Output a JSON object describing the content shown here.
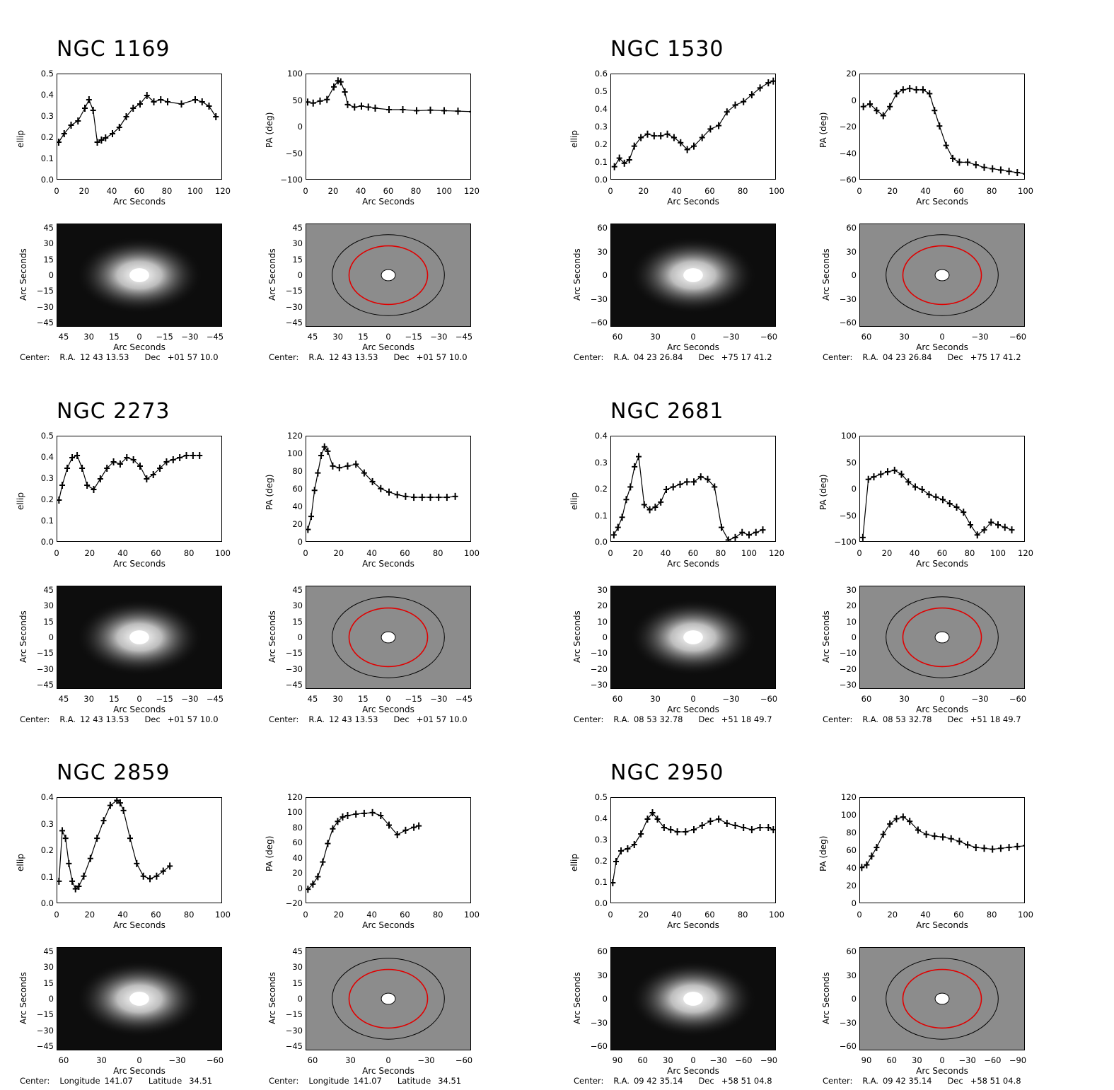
{
  "axis_labels": {
    "arc_seconds": "Arc Seconds",
    "ellip": "ellip",
    "pa": "PA (deg)"
  },
  "center_prefix": "Center:",
  "colors": {
    "ellipse_red": "#e00000",
    "ellipse_black": "#000000",
    "residual_gray": "#8c8c8c"
  },
  "galaxies": [
    {
      "name": "NGC 1169",
      "center": {
        "label1": "R.A.",
        "value1": "12 43 13.53",
        "label2": "Dec",
        "value2": "+01 57 10.0"
      },
      "image_xticks": [
        "45",
        "30",
        "15",
        "0",
        "−15",
        "−30",
        "−45"
      ],
      "image_yticks": [
        "45",
        "30",
        "15",
        "0",
        "−15",
        "−30",
        "−45"
      ]
    },
    {
      "name": "NGC 1530",
      "center": {
        "label1": "R.A.",
        "value1": "04 23 26.84",
        "label2": "Dec",
        "value2": "+75 17 41.2"
      },
      "image_xticks": [
        "60",
        "30",
        "0",
        "−30",
        "−60"
      ],
      "image_yticks": [
        "60",
        "30",
        "0",
        "−30",
        "−60"
      ]
    },
    {
      "name": "NGC 2273",
      "center": {
        "label1": "R.A.",
        "value1": "12 43 13.53",
        "label2": "Dec",
        "value2": "+01 57 10.0"
      },
      "image_xticks": [
        "45",
        "30",
        "15",
        "0",
        "−15",
        "−30",
        "−45"
      ],
      "image_yticks": [
        "45",
        "30",
        "15",
        "0",
        "−15",
        "−30",
        "−45"
      ]
    },
    {
      "name": "NGC 2681",
      "center": {
        "label1": "R.A.",
        "value1": "08 53 32.78",
        "label2": "Dec",
        "value2": "+51 18 49.7"
      },
      "image_xticks": [
        "60",
        "30",
        "0",
        "−30",
        "−60"
      ],
      "image_yticks": [
        "30",
        "20",
        "10",
        "0",
        "−10",
        "−20",
        "−30"
      ]
    },
    {
      "name": "NGC 2859",
      "center": {
        "label1": "Longitude",
        "value1": "141.07",
        "label2": "Latitude",
        "value2": "34.51"
      },
      "image_xticks": [
        "60",
        "30",
        "0",
        "−30",
        "−60"
      ],
      "image_yticks": [
        "45",
        "30",
        "15",
        "0",
        "−15",
        "−30",
        "−45"
      ]
    },
    {
      "name": "NGC 2950",
      "center": {
        "label1": "R.A.",
        "value1": "09 42 35.14",
        "label2": "Dec",
        "value2": "+58 51 04.8"
      },
      "image_xticks": [
        "90",
        "60",
        "30",
        "0",
        "−30",
        "−60",
        "−90"
      ],
      "image_yticks": [
        "60",
        "30",
        "0",
        "−30",
        "−60"
      ]
    }
  ],
  "chart_data": [
    {
      "galaxy": "NGC 1169",
      "type": "scatter",
      "ylabel": "ellip",
      "xlabel": "Arc Seconds",
      "xlim": [
        0,
        120
      ],
      "ylim": [
        0,
        0.5
      ],
      "xticks": [
        0,
        20,
        40,
        60,
        80,
        100,
        120
      ],
      "yticks": [
        "0.0",
        "0.1",
        "0.2",
        "0.3",
        "0.4",
        "0.5"
      ],
      "x": [
        1,
        5,
        10,
        15,
        20,
        23,
        26,
        29,
        32,
        35,
        40,
        45,
        50,
        55,
        60,
        65,
        70,
        75,
        80,
        90,
        100,
        105,
        110,
        115
      ],
      "y": [
        0.18,
        0.22,
        0.26,
        0.28,
        0.34,
        0.38,
        0.33,
        0.18,
        0.19,
        0.2,
        0.22,
        0.25,
        0.3,
        0.34,
        0.36,
        0.4,
        0.37,
        0.38,
        0.37,
        0.36,
        0.38,
        0.37,
        0.35,
        0.3
      ]
    },
    {
      "galaxy": "NGC 1169",
      "type": "scatter",
      "ylabel": "PA (deg)",
      "xlabel": "Arc Seconds",
      "xlim": [
        0,
        120
      ],
      "ylim": [
        -105,
        105
      ],
      "xticks": [
        0,
        20,
        40,
        60,
        80,
        100,
        120
      ],
      "yticks": [
        "100",
        "50",
        "0",
        "−50",
        "−100"
      ],
      "x": [
        1,
        5,
        10,
        15,
        20,
        23,
        25,
        28,
        30,
        35,
        40,
        45,
        50,
        60,
        70,
        80,
        90,
        100,
        110,
        120
      ],
      "y": [
        50,
        48,
        52,
        55,
        80,
        92,
        90,
        70,
        45,
        40,
        42,
        40,
        38,
        35,
        35,
        33,
        34,
        33,
        32,
        31
      ]
    },
    {
      "galaxy": "NGC 1530",
      "type": "scatter",
      "ylabel": "ellip",
      "xlabel": "Arc Seconds",
      "xlim": [
        0,
        100
      ],
      "ylim": [
        0,
        0.62
      ],
      "xticks": [
        0,
        20,
        40,
        60,
        80,
        100
      ],
      "yticks": [
        "0.0",
        "0.1",
        "0.2",
        "0.3",
        "0.4",
        "0.5",
        "0.6"
      ],
      "x": [
        2,
        5,
        8,
        11,
        14,
        18,
        22,
        26,
        30,
        34,
        38,
        42,
        46,
        50,
        55,
        60,
        65,
        70,
        75,
        80,
        85,
        90,
        95,
        98
      ],
      "y": [
        0.08,
        0.13,
        0.1,
        0.12,
        0.2,
        0.25,
        0.27,
        0.26,
        0.26,
        0.27,
        0.25,
        0.22,
        0.18,
        0.2,
        0.25,
        0.3,
        0.32,
        0.4,
        0.44,
        0.46,
        0.5,
        0.54,
        0.57,
        0.58
      ]
    },
    {
      "galaxy": "NGC 1530",
      "type": "scatter",
      "ylabel": "PA (deg)",
      "xlabel": "Arc Seconds",
      "xlim": [
        0,
        100
      ],
      "ylim": [
        -62,
        20
      ],
      "xticks": [
        0,
        20,
        40,
        60,
        80,
        100
      ],
      "yticks": [
        "20",
        "0",
        "−20",
        "−40",
        "−60"
      ],
      "x": [
        2,
        6,
        10,
        14,
        18,
        22,
        26,
        30,
        34,
        38,
        42,
        45,
        48,
        52,
        56,
        60,
        65,
        70,
        75,
        80,
        85,
        90,
        95,
        100
      ],
      "y": [
        -5,
        -3,
        -8,
        -12,
        -5,
        5,
        8,
        9,
        8,
        8,
        5,
        -8,
        -20,
        -35,
        -45,
        -48,
        -48,
        -50,
        -52,
        -53,
        -54,
        -55,
        -56,
        -57
      ]
    },
    {
      "galaxy": "NGC 2273",
      "type": "scatter",
      "ylabel": "ellip",
      "xlabel": "Arc Seconds",
      "xlim": [
        0,
        100
      ],
      "ylim": [
        0,
        0.5
      ],
      "xticks": [
        0,
        20,
        40,
        60,
        80,
        100
      ],
      "yticks": [
        "0.0",
        "0.1",
        "0.2",
        "0.3",
        "0.4",
        "0.5"
      ],
      "x": [
        1,
        3,
        6,
        9,
        12,
        15,
        18,
        22,
        26,
        30,
        34,
        38,
        42,
        46,
        50,
        54,
        58,
        62,
        66,
        70,
        74,
        78,
        82,
        86
      ],
      "y": [
        0.2,
        0.27,
        0.35,
        0.4,
        0.41,
        0.35,
        0.27,
        0.25,
        0.3,
        0.35,
        0.38,
        0.37,
        0.4,
        0.39,
        0.36,
        0.3,
        0.32,
        0.35,
        0.38,
        0.39,
        0.4,
        0.41,
        0.41,
        0.41
      ]
    },
    {
      "galaxy": "NGC 2273",
      "type": "scatter",
      "ylabel": "PA (deg)",
      "xlabel": "Arc Seconds",
      "xlim": [
        0,
        100
      ],
      "ylim": [
        0,
        122
      ],
      "xticks": [
        0,
        20,
        40,
        60,
        80,
        100
      ],
      "yticks": [
        "0",
        "20",
        "40",
        "60",
        "80",
        "100",
        "120"
      ],
      "x": [
        1,
        3,
        5,
        7,
        9,
        11,
        13,
        16,
        20,
        25,
        30,
        35,
        40,
        45,
        50,
        55,
        60,
        65,
        70,
        75,
        80,
        85,
        90
      ],
      "y": [
        15,
        30,
        60,
        80,
        100,
        110,
        105,
        88,
        86,
        88,
        90,
        80,
        70,
        62,
        58,
        55,
        53,
        52,
        52,
        52,
        52,
        52,
        53
      ]
    },
    {
      "galaxy": "NGC 2681",
      "type": "scatter",
      "ylabel": "ellip",
      "xlabel": "Arc Seconds",
      "xlim": [
        0,
        120
      ],
      "ylim": [
        0,
        0.42
      ],
      "xticks": [
        0,
        20,
        40,
        60,
        80,
        100,
        120
      ],
      "yticks": [
        "0.0",
        "0.1",
        "0.2",
        "0.3",
        "0.4"
      ],
      "x": [
        2,
        5,
        8,
        11,
        14,
        17,
        20,
        24,
        28,
        32,
        36,
        40,
        45,
        50,
        55,
        60,
        65,
        70,
        75,
        80,
        85,
        90,
        95,
        100,
        105,
        110
      ],
      "y": [
        0.03,
        0.06,
        0.1,
        0.17,
        0.22,
        0.3,
        0.34,
        0.15,
        0.13,
        0.14,
        0.16,
        0.21,
        0.22,
        0.23,
        0.24,
        0.24,
        0.26,
        0.25,
        0.22,
        0.06,
        0.01,
        0.02,
        0.04,
        0.03,
        0.04,
        0.05
      ]
    },
    {
      "galaxy": "NGC 2681",
      "type": "scatter",
      "ylabel": "PA (deg)",
      "xlabel": "Arc Seconds",
      "xlim": [
        0,
        120
      ],
      "ylim": [
        -105,
        105
      ],
      "xticks": [
        0,
        20,
        40,
        60,
        80,
        100,
        120
      ],
      "yticks": [
        "100",
        "50",
        "0",
        "−50",
        "−100"
      ],
      "x": [
        2,
        6,
        10,
        15,
        20,
        25,
        30,
        35,
        40,
        45,
        50,
        55,
        60,
        65,
        70,
        75,
        80,
        85,
        90,
        95,
        100,
        105,
        110
      ],
      "y": [
        -95,
        20,
        25,
        30,
        35,
        38,
        30,
        15,
        5,
        0,
        -10,
        -15,
        -20,
        -28,
        -35,
        -45,
        -70,
        -90,
        -80,
        -65,
        -70,
        -75,
        -80
      ]
    },
    {
      "galaxy": "NGC 2859",
      "type": "scatter",
      "ylabel": "ellip",
      "xlabel": "Arc Seconds",
      "xlim": [
        0,
        100
      ],
      "ylim": [
        -0.01,
        0.41
      ],
      "xticks": [
        0,
        20,
        40,
        60,
        80,
        100
      ],
      "yticks": [
        "0.0",
        "0.1",
        "0.2",
        "0.3",
        "0.4"
      ],
      "x": [
        1,
        3,
        5,
        7,
        9,
        11,
        13,
        16,
        20,
        24,
        28,
        32,
        36,
        38,
        40,
        44,
        48,
        52,
        56,
        60,
        64,
        68
      ],
      "y": [
        0.08,
        0.28,
        0.25,
        0.15,
        0.08,
        0.05,
        0.06,
        0.1,
        0.17,
        0.25,
        0.32,
        0.38,
        0.4,
        0.39,
        0.36,
        0.25,
        0.15,
        0.1,
        0.09,
        0.1,
        0.12,
        0.14
      ]
    },
    {
      "galaxy": "NGC 2859",
      "type": "scatter",
      "ylabel": "PA (deg)",
      "xlabel": "Arc Seconds",
      "xlim": [
        0,
        100
      ],
      "ylim": [
        -22,
        122
      ],
      "xticks": [
        0,
        20,
        40,
        60,
        80,
        100
      ],
      "yticks": [
        "−20",
        "0",
        "20",
        "40",
        "60",
        "80",
        "100",
        "120"
      ],
      "x": [
        1,
        4,
        7,
        10,
        13,
        16,
        19,
        22,
        25,
        30,
        35,
        40,
        45,
        50,
        55,
        60,
        65,
        68
      ],
      "y": [
        -2,
        5,
        15,
        35,
        60,
        80,
        90,
        96,
        98,
        100,
        101,
        102,
        98,
        85,
        72,
        78,
        82,
        84
      ]
    },
    {
      "galaxy": "NGC 2950",
      "type": "scatter",
      "ylabel": "ellip",
      "xlabel": "Arc Seconds",
      "xlim": [
        0,
        100
      ],
      "ylim": [
        0,
        0.5
      ],
      "xticks": [
        0,
        20,
        40,
        60,
        80,
        100
      ],
      "yticks": [
        "0.0",
        "0.1",
        "0.2",
        "0.3",
        "0.4",
        "0.5"
      ],
      "x": [
        1,
        3,
        6,
        10,
        14,
        18,
        22,
        25,
        28,
        32,
        36,
        40,
        45,
        50,
        55,
        60,
        65,
        70,
        75,
        80,
        85,
        90,
        95,
        98
      ],
      "y": [
        0.1,
        0.2,
        0.25,
        0.26,
        0.28,
        0.33,
        0.4,
        0.43,
        0.4,
        0.36,
        0.35,
        0.34,
        0.34,
        0.35,
        0.37,
        0.39,
        0.4,
        0.38,
        0.37,
        0.36,
        0.35,
        0.36,
        0.36,
        0.35
      ]
    },
    {
      "galaxy": "NGC 2950",
      "type": "scatter",
      "ylabel": "PA (deg)",
      "xlabel": "Arc Seconds",
      "xlim": [
        0,
        100
      ],
      "ylim": [
        0,
        122
      ],
      "xticks": [
        0,
        20,
        40,
        60,
        80,
        100
      ],
      "yticks": [
        "0",
        "20",
        "40",
        "60",
        "80",
        "100",
        "120"
      ],
      "x": [
        1,
        4,
        7,
        10,
        14,
        18,
        22,
        26,
        30,
        35,
        40,
        45,
        50,
        55,
        60,
        65,
        70,
        75,
        80,
        85,
        90,
        95,
        100
      ],
      "y": [
        42,
        45,
        55,
        65,
        80,
        92,
        98,
        100,
        95,
        85,
        80,
        78,
        77,
        75,
        72,
        68,
        65,
        64,
        63,
        64,
        65,
        66,
        67
      ]
    }
  ]
}
